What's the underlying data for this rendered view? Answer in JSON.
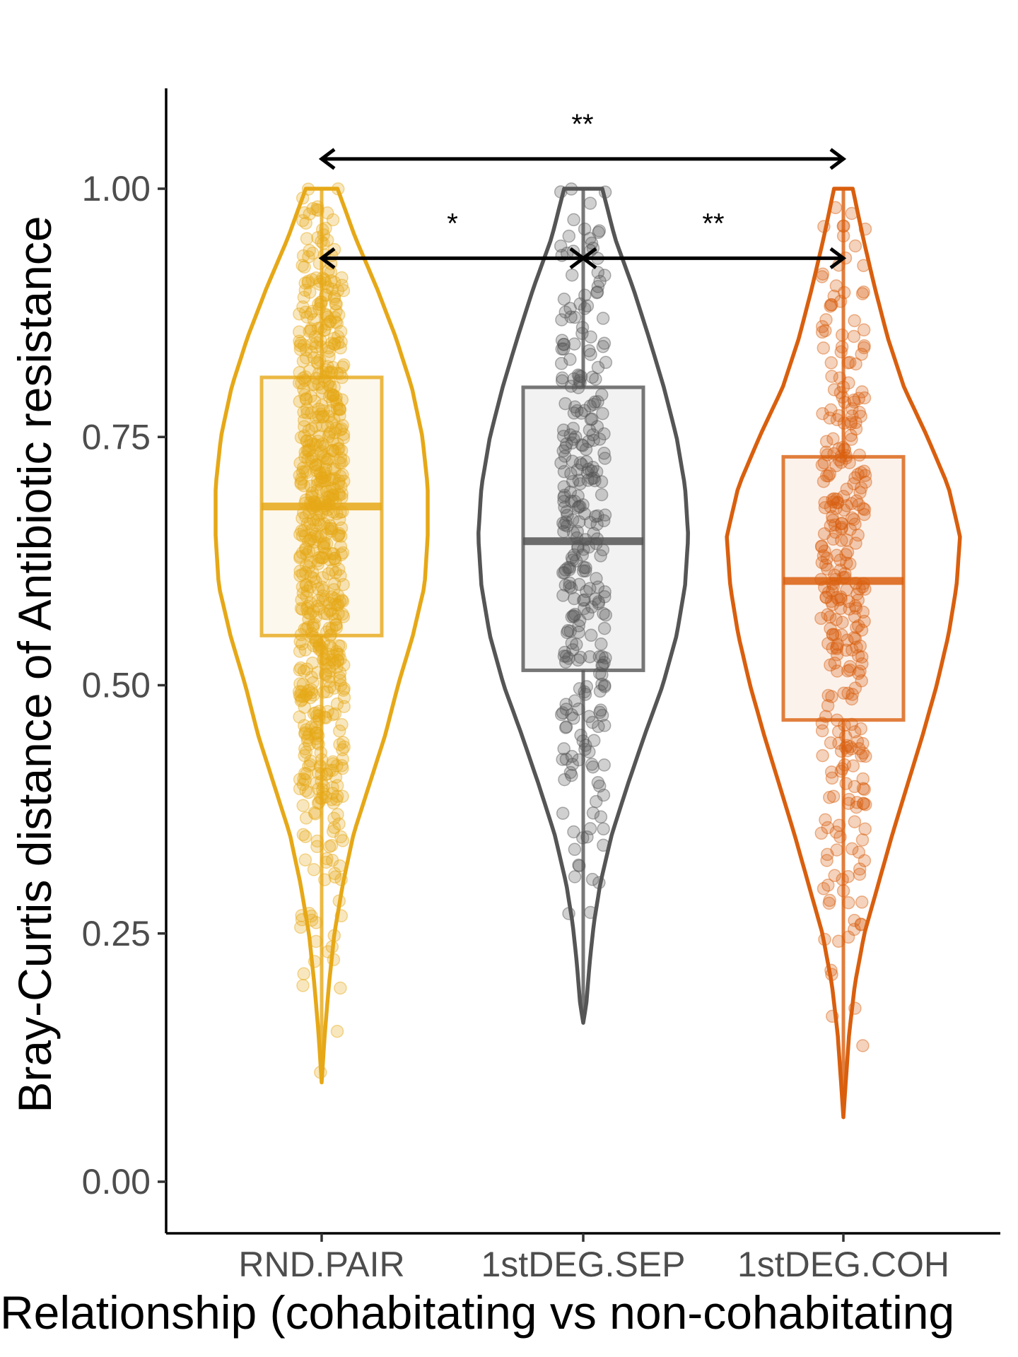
{
  "chart_data": {
    "type": "violin",
    "title": "",
    "xlabel": "Relationship (cohabitating vs non-cohabitating",
    "ylabel": "Bray-Curtis distance of Antibiotic resistance",
    "categories": [
      "RND.PAIR",
      "1stDEG.SEP",
      "1stDEG.COH"
    ],
    "y_ticks": [
      "0.00",
      "0.25",
      "0.50",
      "0.75",
      "1.00"
    ],
    "ylim": [
      -0.05,
      1.1
    ],
    "grid": false,
    "legend": "none",
    "colors": [
      "#E6A817",
      "#555555",
      "#D95F0E"
    ],
    "groups": [
      {
        "name": "RND.PAIR",
        "min": 0.1,
        "q1": 0.55,
        "median": 0.68,
        "q3": 0.81,
        "max": 1.0,
        "points_min": 0.1,
        "points_max": 1.0,
        "n_points": 700
      },
      {
        "name": "1stDEG.SEP",
        "min": 0.16,
        "q1": 0.515,
        "median": 0.645,
        "q3": 0.8,
        "max": 1.0,
        "points_min": 0.16,
        "points_max": 1.0,
        "n_points": 300
      },
      {
        "name": "1stDEG.COH",
        "min": 0.065,
        "q1": 0.465,
        "median": 0.605,
        "q3": 0.73,
        "max": 1.0,
        "points_min": 0.065,
        "points_max": 1.0,
        "n_points": 320
      }
    ],
    "significance": [
      {
        "from": "RND.PAIR",
        "to": "1stDEG.COH",
        "label": "**",
        "y": 1.03
      },
      {
        "from": "RND.PAIR",
        "to": "1stDEG.SEP",
        "label": "*",
        "y": 0.93
      },
      {
        "from": "1stDEG.SEP",
        "to": "1stDEG.COH",
        "label": "**",
        "y": 0.93
      }
    ]
  }
}
